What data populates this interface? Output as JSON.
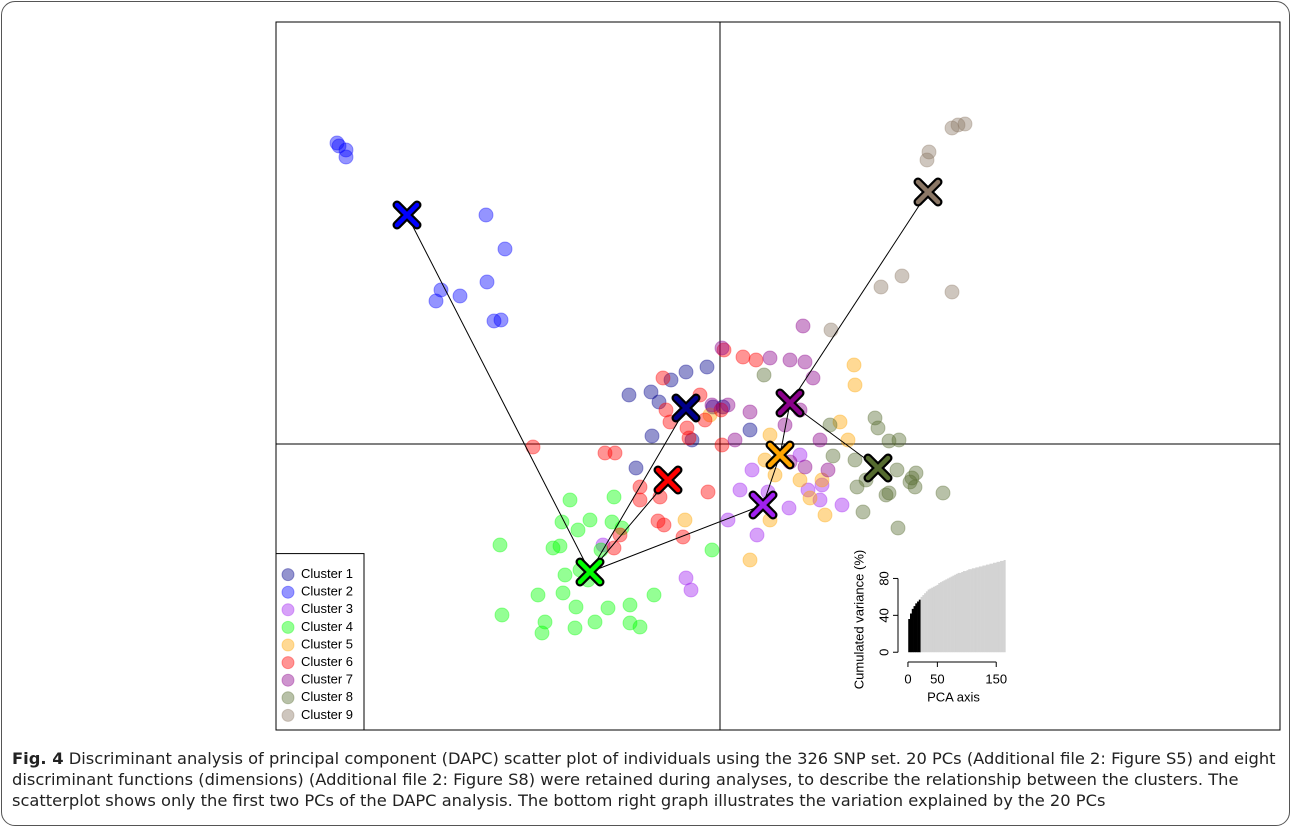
{
  "chart_data": {
    "type": "scatter",
    "xlim": [
      -4.44,
      5.6
    ],
    "ylim": [
      -2.86,
      4.22
    ],
    "legend": "bottomleft",
    "series": [
      {
        "name": "Cluster 1",
        "color": "#00008b",
        "x": [
          -0.91,
          -0.69,
          -0.61,
          -0.49,
          -0.34,
          -0.13,
          -0.07,
          -0.28,
          -0.68,
          -0.84,
          0.3,
          0.03
        ],
        "y": [
          0.49,
          0.52,
          0.42,
          0.64,
          0.72,
          0.77,
          0.37,
          0.04,
          0.08,
          -0.24,
          0.14,
          0.37
        ],
        "centroid": [
          -0.34,
          0.36
        ]
      },
      {
        "name": "Cluster 2",
        "color": "#0000ff",
        "x": [
          -3.83,
          -3.81,
          -3.74,
          -3.74,
          -2.34,
          -2.15,
          -2.33,
          -2.79,
          -2.84,
          -2.6,
          -2.26,
          -2.19
        ],
        "y": [
          3.01,
          2.98,
          2.94,
          2.87,
          2.29,
          1.95,
          1.62,
          1.54,
          1.43,
          1.48,
          1.23,
          1.24
        ],
        "centroid": [
          -3.13,
          2.29
        ]
      },
      {
        "name": "Cluster 3",
        "color": "#a020f0",
        "x": [
          -1.17,
          -0.34,
          -0.29,
          0.08,
          0.2,
          0.37,
          0.69,
          0.8,
          0.88,
          1.02,
          1.0,
          1.22,
          0.32,
          0.48
        ],
        "y": [
          -1.01,
          -1.34,
          -1.46,
          -0.76,
          -0.46,
          -0.91,
          -0.64,
          -0.11,
          -0.46,
          -0.41,
          -0.56,
          -0.61,
          -0.26,
          -0.48
        ],
        "centroid": [
          0.43,
          -0.61
        ]
      },
      {
        "name": "Cluster 4",
        "color": "#00ff00",
        "x": [
          -1.5,
          -1.42,
          -1.58,
          -1.67,
          -1.6,
          -1.3,
          -1.06,
          -1.08,
          -1.19,
          -1.4,
          -1.32,
          -2.2,
          -2.18,
          -1.82,
          -1.57,
          -1.44,
          -1.75,
          -1.78,
          -1.45,
          -1.25,
          -1.12,
          -0.9,
          -0.9,
          -0.8,
          -0.66,
          -0.08,
          -0.98,
          -1.55
        ],
        "y": [
          -0.56,
          -0.86,
          -0.78,
          -1.04,
          -1.02,
          -0.76,
          -0.53,
          -0.78,
          -1.06,
          -1.26,
          -1.36,
          -1.01,
          -1.71,
          -1.51,
          -1.49,
          -1.63,
          -1.78,
          -1.89,
          -1.84,
          -1.78,
          -1.64,
          -1.61,
          -1.79,
          -1.83,
          -1.51,
          -1.06,
          -0.84,
          -1.31
        ],
        "centroid": [
          -1.3,
          -1.28
        ]
      },
      {
        "name": "Cluster 5",
        "color": "#ffa500",
        "x": [
          1.34,
          1.35,
          1.28,
          1.2,
          0.5,
          0.45,
          0.55,
          0.8,
          1.02,
          1.05,
          0.9,
          0.5,
          0.3,
          -0.35,
          -0.1
        ],
        "y": [
          0.79,
          0.59,
          0.04,
          0.22,
          0.09,
          -0.16,
          -0.31,
          -0.36,
          -0.36,
          -0.71,
          -0.54,
          -0.76,
          -1.16,
          -0.76,
          0.29
        ],
        "centroid": [
          0.6,
          -0.11
        ]
      },
      {
        "name": "Cluster 6",
        "color": "#ff0000",
        "x": [
          0.23,
          0.36,
          0.04,
          -0.2,
          -0.33,
          -0.31,
          -0.57,
          -0.54,
          -0.5,
          -0.15,
          0.01,
          0.02,
          -1.87,
          -1.15,
          -1.05,
          -0.8,
          -0.8,
          -0.6,
          -0.56,
          -0.62,
          -0.37,
          -0.12,
          -1.0,
          -1.06
        ],
        "y": [
          0.87,
          0.84,
          0.94,
          0.49,
          0.16,
          0.06,
          0.66,
          0.34,
          0.22,
          0.24,
          0.34,
          -0.01,
          -0.03,
          -0.09,
          -0.09,
          -0.43,
          -0.56,
          -0.53,
          -0.81,
          -0.77,
          -0.93,
          -0.48,
          -0.91,
          -1.04
        ],
        "centroid": [
          -0.52,
          -0.36
        ]
      },
      {
        "name": "Cluster 7",
        "color": "#8b008b",
        "x": [
          0.02,
          0.5,
          0.7,
          0.85,
          0.83,
          0.93,
          0.8,
          0.65,
          0.15,
          0.3,
          0.7,
          0.85,
          1.08,
          1.0,
          -0.08,
          0.08
        ],
        "y": [
          0.96,
          0.86,
          0.84,
          0.82,
          1.18,
          0.66,
          0.34,
          0.19,
          0.04,
          0.32,
          -0.18,
          -0.23,
          -0.26,
          0.04,
          0.39,
          0.39
        ],
        "centroid": [
          0.7,
          0.41
        ]
      },
      {
        "name": "Cluster 8",
        "color": "#556b2f",
        "x": [
          0.44,
          1.55,
          1.58,
          1.69,
          1.79,
          1.1,
          1.13,
          1.35,
          1.46,
          1.77,
          1.92,
          1.96,
          1.9,
          1.95,
          2.23,
          1.37,
          1.43,
          1.66,
          1.69,
          1.78
        ],
        "y": [
          0.69,
          0.26,
          0.16,
          0.03,
          0.04,
          0.19,
          -0.12,
          -0.16,
          -0.36,
          -0.26,
          -0.34,
          -0.29,
          -0.38,
          -0.43,
          -0.49,
          -0.43,
          -0.68,
          -0.51,
          -0.49,
          -0.84
        ],
        "centroid": [
          1.58,
          -0.24
        ]
      },
      {
        "name": "Cluster 9",
        "color": "#8b7765",
        "x": [
          2.32,
          2.38,
          2.45,
          2.09,
          2.07,
          1.82,
          1.61,
          2.32,
          1.11
        ],
        "y": [
          3.16,
          3.19,
          3.2,
          2.92,
          2.84,
          1.68,
          1.57,
          1.52,
          1.14
        ],
        "centroid": [
          2.08,
          2.52
        ]
      }
    ],
    "edges": [
      [
        3,
        1
      ],
      [
        3,
        0
      ],
      [
        3,
        5
      ],
      [
        3,
        2
      ],
      [
        2,
        4
      ],
      [
        4,
        6
      ],
      [
        6,
        8
      ],
      [
        6,
        7
      ]
    ],
    "inset": {
      "type": "bar",
      "ylabel": "Cumulated variance (%)",
      "xlabel": "PCA axis",
      "xlim": [
        -5,
        170
      ],
      "ylim": [
        -3,
        100
      ],
      "xticks": [
        0,
        50,
        150
      ],
      "yticks": [
        0,
        40,
        80
      ],
      "retained": 20,
      "bar_width": 3,
      "color": "#000000",
      "other_color": "#d3d3d3",
      "x": [
        2,
        5,
        8,
        11,
        14,
        17,
        20,
        23,
        26,
        29,
        32,
        35,
        38,
        41,
        44,
        47,
        50,
        53,
        56,
        59,
        62,
        65,
        68,
        71,
        74,
        77,
        80,
        83,
        86,
        89,
        92,
        95,
        98,
        101,
        104,
        107,
        110,
        113,
        116,
        119,
        122,
        125,
        128,
        131,
        134,
        137,
        140,
        143,
        146,
        149,
        152,
        155,
        158,
        161,
        164
      ],
      "values": [
        36,
        42,
        47,
        50,
        53,
        55,
        57,
        60,
        62,
        64,
        66,
        68,
        69,
        70,
        71,
        72,
        73,
        75,
        76,
        77,
        78,
        79,
        80,
        81,
        82,
        83,
        84,
        85,
        86,
        86,
        87,
        88,
        88,
        89,
        90,
        90,
        91,
        91,
        92,
        92,
        93,
        93,
        94,
        94,
        95,
        95,
        96,
        96,
        97,
        97,
        98,
        98,
        99,
        99,
        100
      ]
    },
    "caption": {
      "label": "Fig. 4",
      "text": "Discriminant analysis of principal component (DAPC) scatter plot of individuals using the 326 SNP set. 20 PCs (Additional file 2: Figure S5) and eight discriminant functions (dimensions) (Additional file 2: Figure S8) were retained during analyses, to describe the relationship between the clusters. The scatterplot shows only the first two PCs of the DAPC analysis. The bottom right graph illustrates the variation explained by the 20 PCs"
    }
  }
}
